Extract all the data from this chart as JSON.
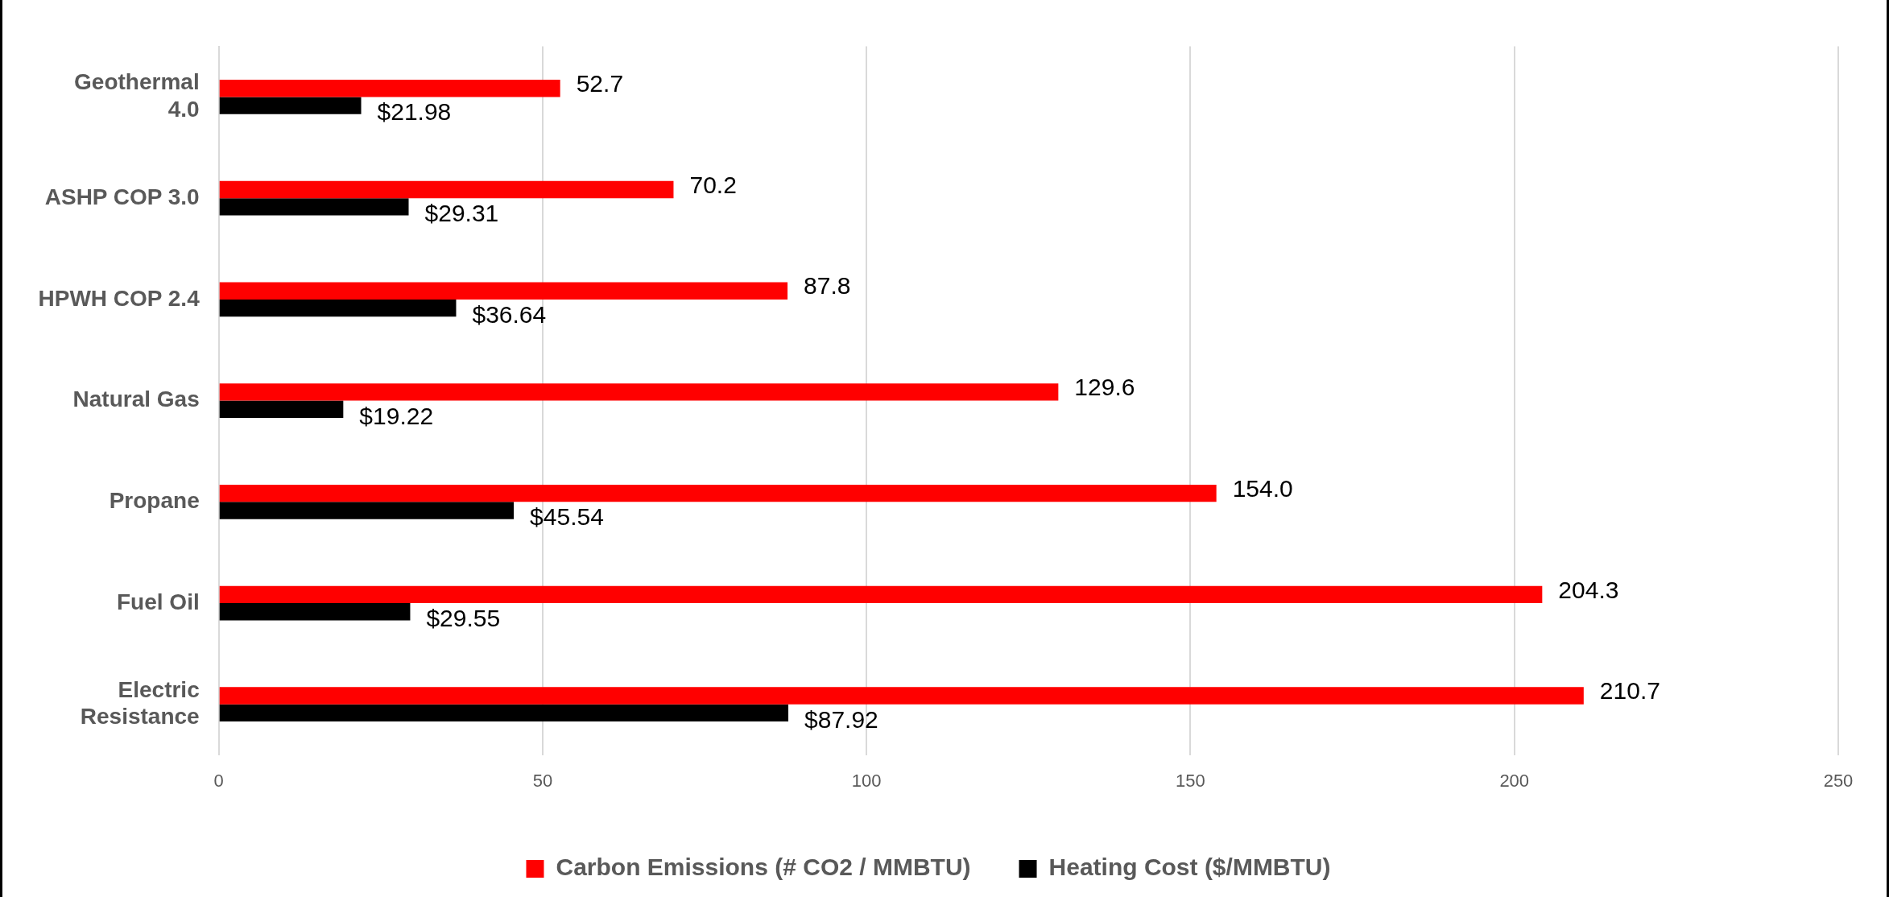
{
  "chart_data": {
    "type": "bar",
    "orientation": "horizontal",
    "categories": [
      "Geothermal 4.0",
      "ASHP COP 3.0",
      "HPWH COP 2.4",
      "Natural Gas",
      "Propane",
      "Fuel Oil",
      "Electric Resistance"
    ],
    "series": [
      {
        "name": "Carbon Emissions (# CO2 / MMBTU)",
        "color": "#ff0000",
        "values": [
          52.7,
          70.2,
          87.8,
          129.6,
          154.0,
          204.3,
          210.7
        ],
        "value_labels": [
          "52.7",
          "70.2",
          "87.8",
          "129.6",
          "154.0",
          "204.3",
          "210.7"
        ]
      },
      {
        "name": "Heating Cost ($/MMBTU)",
        "color": "#000000",
        "values": [
          21.98,
          29.31,
          36.64,
          19.22,
          45.54,
          29.55,
          87.92
        ],
        "value_labels": [
          "$21.98",
          "$29.31",
          "$36.64",
          "$19.22",
          "$45.54",
          "$29.55",
          "$87.92"
        ]
      }
    ],
    "xlim": [
      0,
      250
    ],
    "xticks": [
      0,
      50,
      100,
      150,
      200,
      250
    ],
    "grid": "x",
    "legend": "bottom"
  }
}
